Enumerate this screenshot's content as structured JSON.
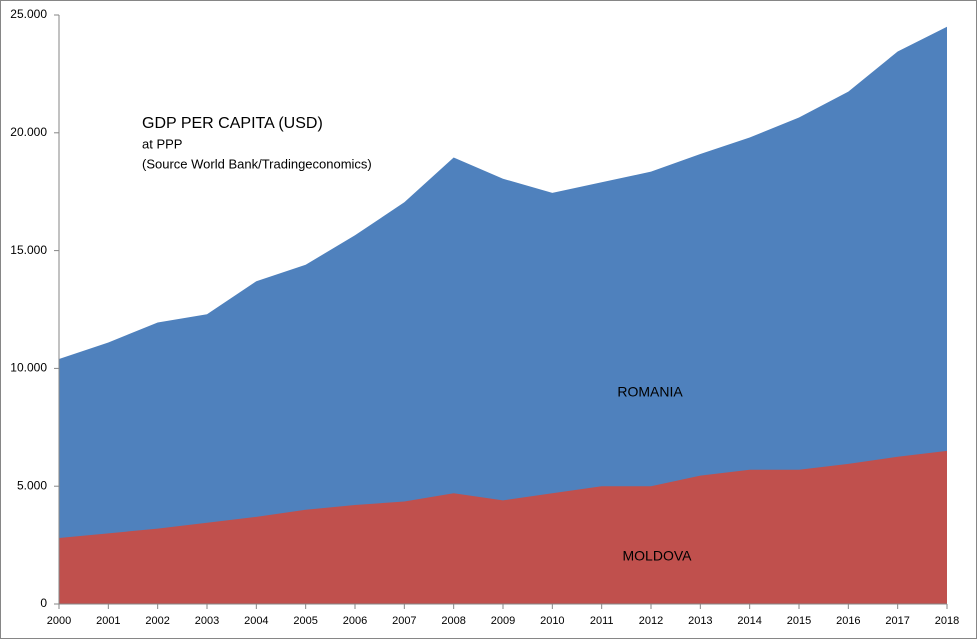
{
  "chart_data": {
    "type": "area",
    "title": "GDP PER CAPITA (USD)",
    "subtitle": "at PPP",
    "note": "(Source World Bank/Tradingeconomics)",
    "categories": [
      "2000",
      "2001",
      "2002",
      "2003",
      "2004",
      "2005",
      "2006",
      "2007",
      "2008",
      "2009",
      "2010",
      "2011",
      "2012",
      "2013",
      "2014",
      "2015",
      "2016",
      "2017",
      "2018"
    ],
    "series": [
      {
        "name": "ROMANIA",
        "color": "#4f81bd",
        "values": [
          10400,
          11100,
          11950,
          12300,
          13700,
          14400,
          15650,
          17050,
          18950,
          18050,
          17450,
          17900,
          18350,
          19100,
          19800,
          20650,
          21750,
          23450,
          24500
        ]
      },
      {
        "name": "MOLDOVA",
        "color": "#c0504d",
        "values": [
          2800,
          3000,
          3200,
          3450,
          3700,
          4000,
          4200,
          4350,
          4700,
          4400,
          4700,
          5000,
          5000,
          5450,
          5700,
          5700,
          5950,
          6250,
          6500
        ]
      }
    ],
    "ylim": [
      0,
      25000
    ],
    "yticks": [
      0,
      {
        "value": 5000,
        "label": "5.000"
      },
      {
        "value": 10000,
        "label": "10.000"
      },
      {
        "value": 15000,
        "label": "15.000"
      },
      {
        "value": 20000,
        "label": "20.000"
      },
      {
        "value": 25000,
        "label": "25.000"
      }
    ],
    "grid": false
  }
}
